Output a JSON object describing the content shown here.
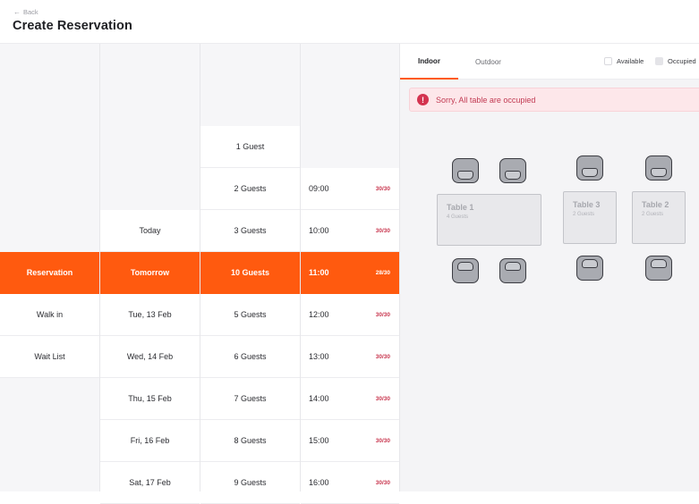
{
  "header": {
    "back_label": "Back",
    "title": "Create Reservation"
  },
  "types": [
    "Reservation",
    "Walk in",
    "Wait List"
  ],
  "days": [
    "Today",
    "Tomorrow",
    "Tue, 13 Feb",
    "Wed, 14 Feb",
    "Thu, 15 Feb",
    "Fri, 16 Feb",
    "Sat, 17 Feb"
  ],
  "guests": [
    "1 Guest",
    "2 Guests",
    "3 Guests",
    "10 Guests",
    "5 Guests",
    "6 Guests",
    "7 Guests",
    "8 Guests",
    "9 Guests"
  ],
  "times": [
    {
      "time": "09:00",
      "cap": "30/30"
    },
    {
      "time": "10:00",
      "cap": "30/30"
    },
    {
      "time": "11:00",
      "cap": "28/30"
    },
    {
      "time": "12:00",
      "cap": "30/30"
    },
    {
      "time": "13:00",
      "cap": "30/30"
    },
    {
      "time": "14:00",
      "cap": "30/30"
    },
    {
      "time": "15:00",
      "cap": "30/30"
    },
    {
      "time": "16:00",
      "cap": "30/30"
    }
  ],
  "tabs": [
    "Indoor",
    "Outdoor"
  ],
  "legend": {
    "available": "Available",
    "occupied": "Occupied"
  },
  "alert": {
    "icon": "!",
    "message": "Sorry, All table are occupied"
  },
  "tables": [
    {
      "name": "Table 1",
      "capacity": "4 Guests"
    },
    {
      "name": "Table 3",
      "capacity": "2 Guests"
    },
    {
      "name": "Table 2",
      "capacity": "2 Guests"
    }
  ],
  "colors": {
    "accent": "#ff5a0f",
    "alert_bg": "#fde7ea",
    "alert_text": "#c23a52",
    "capacity_text": "#c9374f"
  }
}
